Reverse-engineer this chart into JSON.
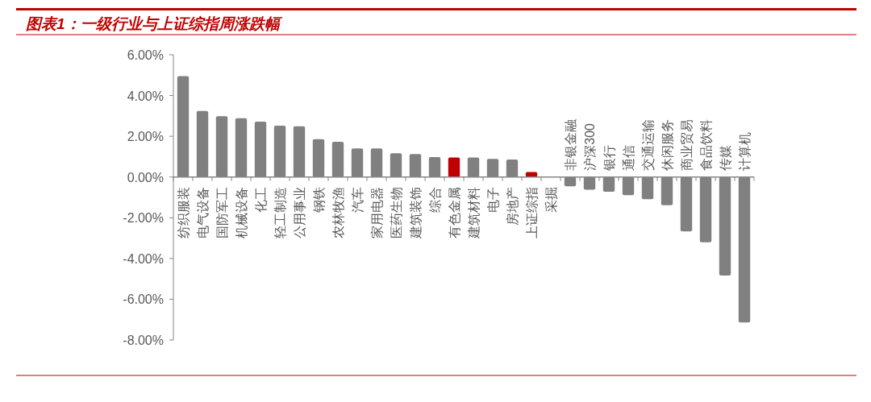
{
  "chart_data": {
    "type": "bar",
    "title": "图表1：一级行业与上证综指周涨跌幅",
    "categories": [
      "纺织服装",
      "电气设备",
      "国防军工",
      "机械设备",
      "化工",
      "轻工制造",
      "公用事业",
      "钢铁",
      "农林牧渔",
      "汽车",
      "家用电器",
      "医药生物",
      "建筑装饰",
      "综合",
      "有色金属",
      "建筑材料",
      "电子",
      "房地产",
      "上证综指",
      "采掘",
      "非银金融",
      "沪深300",
      "银行",
      "通信",
      "交通运输",
      "休闲服务",
      "商业贸易",
      "食品饮料",
      "传媒",
      "计算机"
    ],
    "values": [
      4.95,
      3.24,
      2.98,
      2.89,
      2.72,
      2.52,
      2.49,
      1.86,
      1.73,
      1.4,
      1.4,
      1.17,
      1.13,
      0.98,
      0.96,
      0.96,
      0.89,
      0.86,
      0.25,
      0,
      -0.46,
      -0.62,
      -0.72,
      -0.89,
      -1.09,
      -1.39,
      -2.67,
      -3.2,
      -4.84,
      -7.14
    ],
    "colors": [
      "#808080",
      "#808080",
      "#808080",
      "#808080",
      "#808080",
      "#808080",
      "#808080",
      "#808080",
      "#808080",
      "#808080",
      "#808080",
      "#808080",
      "#808080",
      "#808080",
      "#c00000",
      "#808080",
      "#808080",
      "#808080",
      "#c00000",
      "#808080",
      "#808080",
      "#808080",
      "#808080",
      "#808080",
      "#808080",
      "#808080",
      "#808080",
      "#808080",
      "#808080",
      "#808080"
    ],
    "ylim": [
      -8,
      6
    ],
    "yticks": [
      {
        "value": -8,
        "label": "-8.00%"
      },
      {
        "value": -6,
        "label": "-6.00%"
      },
      {
        "value": -4,
        "label": "-4.00%"
      },
      {
        "value": -2,
        "label": "-2.00%"
      },
      {
        "value": 0,
        "label": "0.00%"
      },
      {
        "value": 2,
        "label": "2.00%"
      },
      {
        "value": 4,
        "label": "4.00%"
      },
      {
        "value": 6,
        "label": "6.00%"
      }
    ],
    "grid": false
  }
}
